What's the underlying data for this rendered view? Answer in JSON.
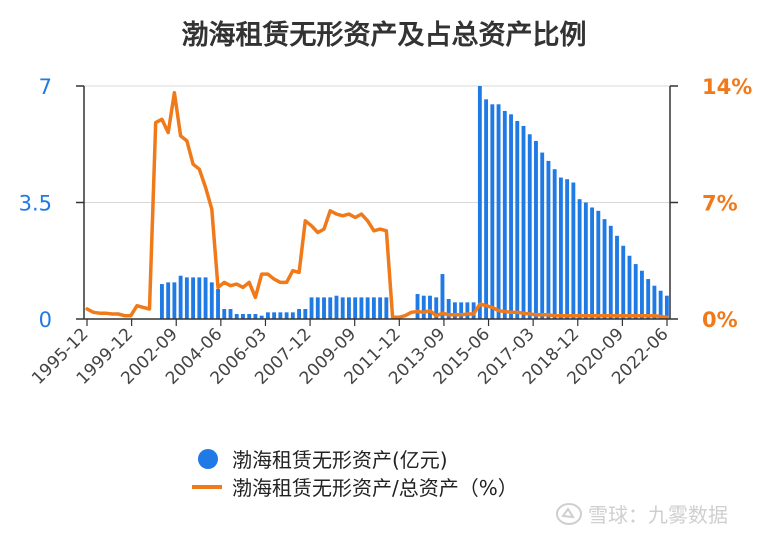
{
  "chart_data": {
    "type": "bar",
    "title": "渤海租赁无形资产及占总资产比例",
    "y_left": {
      "ticks": [
        "0",
        "3.5",
        "7"
      ],
      "ylim": [
        0,
        7
      ],
      "color": "#1f7ae6"
    },
    "y_right": {
      "ticks": [
        "0%",
        "7%",
        "14%"
      ],
      "ylim": [
        0,
        14
      ],
      "color": "#f07a1a"
    },
    "x_tick_labels": [
      "1995-12",
      "1999-12",
      "2002-09",
      "2004-06",
      "2006-03",
      "2007-12",
      "2009-09",
      "2011-12",
      "2013-09",
      "2015-06",
      "2017-03",
      "2018-12",
      "2020-09",
      "2022-06"
    ],
    "grid": true,
    "legend_position": "bottom-center",
    "series": [
      {
        "name": "渤海租赁无形资产(亿元)",
        "type": "bar",
        "axis": "left",
        "color": "#1f7ae6",
        "values": [
          0,
          0,
          0,
          0,
          0,
          0,
          0,
          0,
          0,
          0,
          0,
          0,
          1.05,
          1.1,
          1.1,
          1.3,
          1.25,
          1.25,
          1.25,
          1.25,
          1.1,
          0.9,
          0.3,
          0.3,
          0.15,
          0.15,
          0.15,
          0.15,
          0.1,
          0.2,
          0.2,
          0.2,
          0.2,
          0.2,
          0.3,
          0.3,
          0.65,
          0.65,
          0.65,
          0.65,
          0.7,
          0.65,
          0.65,
          0.65,
          0.65,
          0.65,
          0.65,
          0.65,
          0.65,
          0,
          0,
          0,
          0,
          0.75,
          0.7,
          0.7,
          0.65,
          1.35,
          0.6,
          0.5,
          0.5,
          0.5,
          0.5,
          7.0,
          6.6,
          6.45,
          6.45,
          6.25,
          6.15,
          5.95,
          5.8,
          5.55,
          5.35,
          5.0,
          4.75,
          4.5,
          4.25,
          4.2,
          4.1,
          3.6,
          3.5,
          3.35,
          3.25,
          3.0,
          2.8,
          2.5,
          2.2,
          1.9,
          1.65,
          1.45,
          1.2,
          1.0,
          0.85,
          0.7
        ]
      },
      {
        "name": "渤海租赁无形资产/总资产（%）",
        "type": "line",
        "axis": "right",
        "color": "#f07a1a",
        "values": [
          0.6,
          0.4,
          0.35,
          0.35,
          0.3,
          0.3,
          0.2,
          0.2,
          0.8,
          0.7,
          0.6,
          11.8,
          12.0,
          11.2,
          13.6,
          11.0,
          10.7,
          9.3,
          9.0,
          7.9,
          6.6,
          1.9,
          2.2,
          2.0,
          2.1,
          1.9,
          2.2,
          1.3,
          2.7,
          2.7,
          2.4,
          2.2,
          2.2,
          2.9,
          2.8,
          5.9,
          5.6,
          5.2,
          5.4,
          6.5,
          6.3,
          6.2,
          6.3,
          6.1,
          6.3,
          5.9,
          5.3,
          5.4,
          5.3,
          0.1,
          0.1,
          0.2,
          0.4,
          0.45,
          0.4,
          0.5,
          0.2,
          0.35,
          0.25,
          0.25,
          0.25,
          0.3,
          0.3,
          0.9,
          0.8,
          0.7,
          0.5,
          0.45,
          0.4,
          0.4,
          0.35,
          0.3,
          0.25,
          0.25,
          0.25,
          0.2,
          0.2,
          0.2,
          0.2,
          0.2,
          0.2,
          0.2,
          0.2,
          0.2,
          0.2,
          0.2,
          0.2,
          0.2,
          0.2,
          0.2,
          0.2,
          0.2,
          0.15,
          0.1
        ]
      }
    ]
  },
  "watermark": "雪球：九雾数据"
}
